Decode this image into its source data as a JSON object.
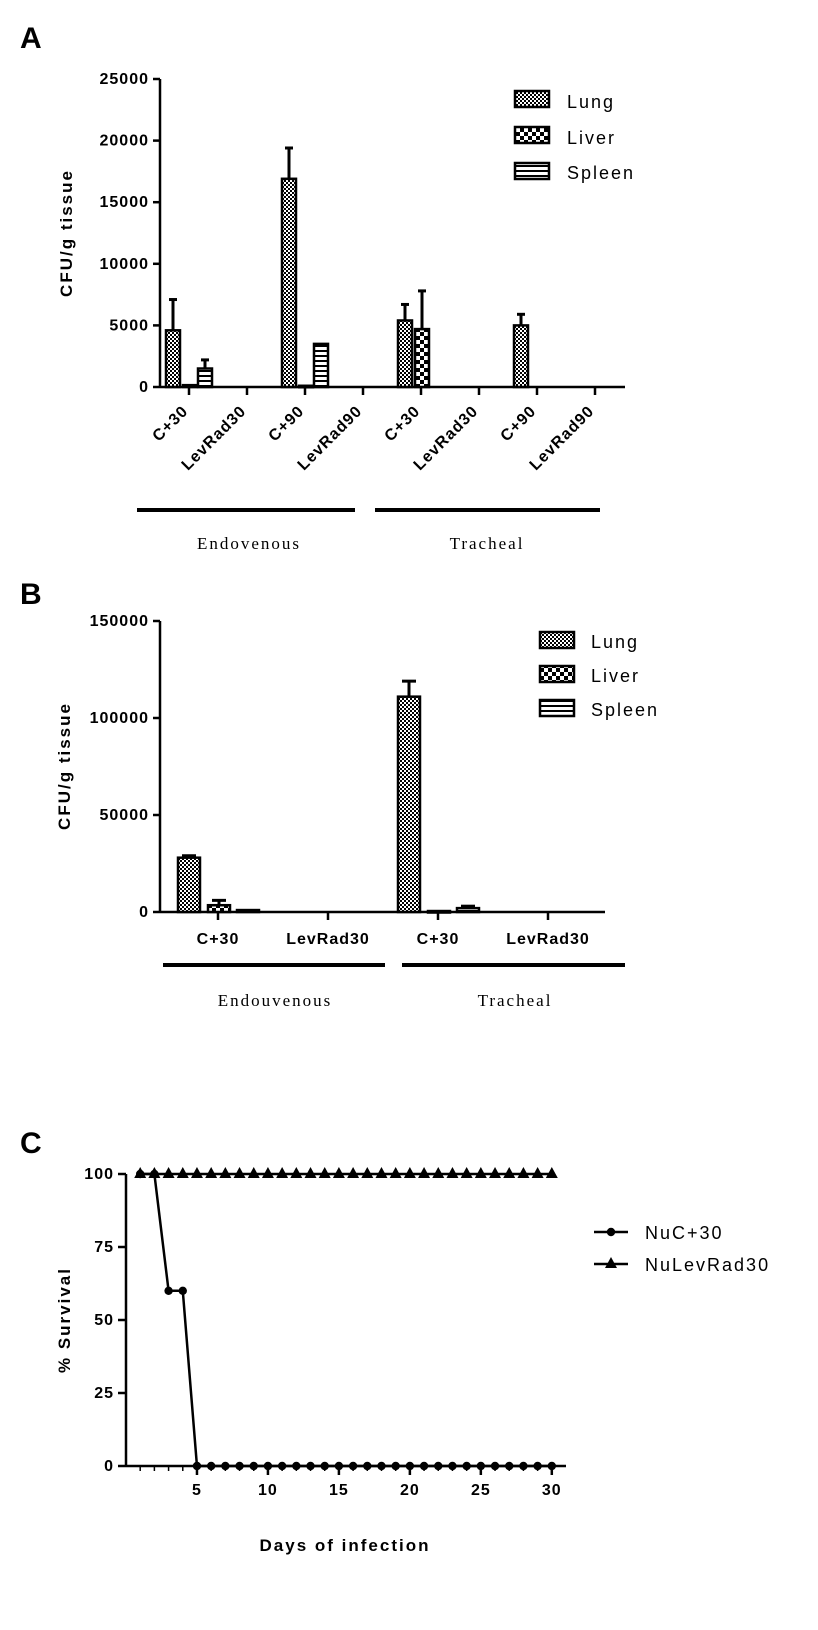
{
  "chart_data": [
    {
      "panel": "A",
      "type": "bar",
      "ylabel": "CFU/g tissue",
      "ylim": [
        0,
        25000
      ],
      "yticks": [
        0,
        5000,
        10000,
        15000,
        20000,
        25000
      ],
      "categories": [
        "C+30",
        "LevRad30",
        "C+90",
        "LevRad90",
        "C+30",
        "LevRad30",
        "C+90",
        "LevRad90"
      ],
      "groups": [
        {
          "label": "Endovenous",
          "categories": [
            "C+30",
            "LevRad30",
            "C+90",
            "LevRad90"
          ]
        },
        {
          "label": "Tracheal",
          "categories": [
            "C+30",
            "LevRad30",
            "C+90",
            "LevRad90"
          ]
        }
      ],
      "legend_position": "top-right",
      "series": [
        {
          "name": "Lung",
          "pattern": "fine-checker",
          "values": [
            4600,
            0,
            16900,
            0,
            5400,
            0,
            5000,
            0
          ],
          "errors": [
            2500,
            0,
            2500,
            0,
            1300,
            0,
            900,
            0
          ]
        },
        {
          "name": "Liver",
          "pattern": "coarse-checker",
          "values": [
            150,
            0,
            100,
            0,
            4700,
            0,
            0,
            0
          ],
          "errors": [
            0,
            0,
            0,
            0,
            3100,
            0,
            0,
            0
          ]
        },
        {
          "name": "Spleen",
          "pattern": "horizontal-lines",
          "values": [
            1500,
            0,
            3500,
            0,
            0,
            0,
            0,
            0
          ],
          "errors": [
            700,
            0,
            0,
            0,
            0,
            0,
            0,
            0
          ]
        }
      ]
    },
    {
      "panel": "B",
      "type": "bar",
      "ylabel": "CFU/g tissue",
      "ylim": [
        0,
        150000
      ],
      "yticks": [
        0,
        50000,
        100000,
        150000
      ],
      "categories": [
        "C+30",
        "LevRad30",
        "C+30",
        "LevRad30"
      ],
      "groups": [
        {
          "label": "Endouvenous",
          "categories": [
            "C+30",
            "LevRad30"
          ]
        },
        {
          "label": "Tracheal",
          "categories": [
            "C+30",
            "LevRad30"
          ]
        }
      ],
      "legend_position": "top-right",
      "series": [
        {
          "name": "Lung",
          "pattern": "fine-checker",
          "values": [
            28000,
            0,
            111000,
            0
          ],
          "errors": [
            1000,
            0,
            8000,
            0
          ]
        },
        {
          "name": "Liver",
          "pattern": "coarse-checker",
          "values": [
            3500,
            0,
            500,
            0
          ],
          "errors": [
            2500,
            0,
            0,
            0
          ]
        },
        {
          "name": "Spleen",
          "pattern": "horizontal-lines",
          "values": [
            1000,
            0,
            2000,
            0
          ],
          "errors": [
            0,
            0,
            1000,
            0
          ]
        }
      ]
    },
    {
      "panel": "C",
      "type": "line",
      "xlabel": "Days of infection",
      "ylabel": "% Survival",
      "xlim": [
        0,
        31
      ],
      "ylim": [
        0,
        100
      ],
      "xticks": [
        5,
        10,
        15,
        20,
        25,
        30
      ],
      "yticks": [
        0,
        25,
        50,
        75,
        100
      ],
      "legend_position": "right",
      "series": [
        {
          "name": "NuC+30",
          "marker": "circle",
          "x": [
            1,
            2,
            3,
            4,
            5,
            6,
            7,
            8,
            9,
            10,
            11,
            12,
            13,
            14,
            15,
            16,
            17,
            18,
            19,
            20,
            21,
            22,
            23,
            24,
            25,
            26,
            27,
            28,
            29,
            30
          ],
          "y": [
            100,
            100,
            60,
            60,
            0,
            0,
            0,
            0,
            0,
            0,
            0,
            0,
            0,
            0,
            0,
            0,
            0,
            0,
            0,
            0,
            0,
            0,
            0,
            0,
            0,
            0,
            0,
            0,
            0,
            0
          ]
        },
        {
          "name": "NuLevRad30",
          "marker": "triangle",
          "x": [
            1,
            2,
            3,
            4,
            5,
            6,
            7,
            8,
            9,
            10,
            11,
            12,
            13,
            14,
            15,
            16,
            17,
            18,
            19,
            20,
            21,
            22,
            23,
            24,
            25,
            26,
            27,
            28,
            29,
            30
          ],
          "y": [
            100,
            100,
            100,
            100,
            100,
            100,
            100,
            100,
            100,
            100,
            100,
            100,
            100,
            100,
            100,
            100,
            100,
            100,
            100,
            100,
            100,
            100,
            100,
            100,
            100,
            100,
            100,
            100,
            100,
            100
          ]
        }
      ]
    }
  ]
}
